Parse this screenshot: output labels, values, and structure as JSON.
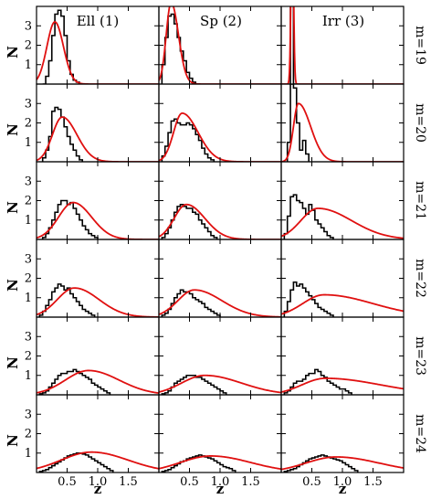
{
  "chart_data": {
    "type": "histogram-grid",
    "columns": [
      "Ell (1)",
      "Sp (2)",
      "Irr (3)"
    ],
    "rows": [
      "m=19",
      "m=20",
      "m=21",
      "m=22",
      "m=23",
      "m=24"
    ],
    "ylabel": "N",
    "xlabel": "z",
    "x_ticks": [
      "0.5",
      "1.0",
      "1.5"
    ],
    "y_ticks": [
      "1",
      "2",
      "3"
    ],
    "xlim": [
      0,
      2.0
    ],
    "ylim": [
      0,
      4
    ],
    "colors": {
      "histogram": "#000000",
      "model": "#e01010"
    },
    "panels": [
      {
        "row": 0,
        "col": 0,
        "hist": {
          "start": 0.1,
          "width": 0.05,
          "values": [
            0,
            0.4,
            1.2,
            2.5,
            3.6,
            3.8,
            3.5,
            2.5,
            1.2,
            0.5,
            0.2,
            0.1
          ]
        },
        "model": {
          "peak": 0.3,
          "amp": 3.2,
          "sigma_left": 0.13,
          "sigma_right": 0.14
        }
      },
      {
        "row": 0,
        "col": 1,
        "hist": {
          "start": 0.05,
          "width": 0.05,
          "values": [
            1.0,
            2.4,
            3.5,
            3.6,
            3.1,
            2.4,
            1.7,
            1.2,
            0.6,
            0.3,
            0.1
          ]
        },
        "model": {
          "peak": 0.2,
          "amp": 4.2,
          "sigma_left": 0.08,
          "sigma_right": 0.12
        }
      },
      {
        "row": 0,
        "col": 2,
        "hist": {
          "start": 0.15,
          "width": 0.05,
          "values": [
            4.2,
            0.0
          ]
        },
        "model": {
          "peak": 0.18,
          "amp": 9.0,
          "sigma_left": 0.02,
          "sigma_right": 0.02
        }
      },
      {
        "row": 1,
        "col": 0,
        "hist": {
          "start": 0.1,
          "width": 0.05,
          "values": [
            0.2,
            0.6,
            1.3,
            2.6,
            2.8,
            2.7,
            2.3,
            1.8,
            1.3,
            0.9,
            0.6,
            0.3,
            0.1
          ]
        },
        "model": {
          "peak": 0.42,
          "amp": 2.3,
          "sigma_left": 0.16,
          "sigma_right": 0.24
        }
      },
      {
        "row": 1,
        "col": 1,
        "hist": {
          "start": 0.05,
          "width": 0.05,
          "values": [
            0.3,
            0.8,
            1.5,
            2.1,
            2.2,
            2.0,
            1.9,
            1.9,
            2.0,
            1.9,
            1.7,
            1.4,
            1.1,
            0.7,
            0.4,
            0.2,
            0.1
          ]
        },
        "model": {
          "peak": 0.38,
          "amp": 2.5,
          "sigma_left": 0.14,
          "sigma_right": 0.26
        }
      },
      {
        "row": 1,
        "col": 2,
        "hist": {
          "start": 0.1,
          "width": 0.05,
          "values": [
            1.0,
            4.0,
            3.8,
            2.0,
            0.6,
            1.1,
            0.4
          ]
        },
        "model": {
          "peak": 0.28,
          "amp": 3.0,
          "sigma_left": 0.08,
          "sigma_right": 0.2
        }
      },
      {
        "row": 2,
        "col": 0,
        "hist": {
          "start": 0.1,
          "width": 0.05,
          "values": [
            0.1,
            0.3,
            0.6,
            1.0,
            1.4,
            1.8,
            2.0,
            2.0,
            1.8,
            1.9,
            1.6,
            1.3,
            1.0,
            0.7,
            0.5,
            0.3,
            0.2,
            0.1
          ]
        },
        "model": {
          "peak": 0.6,
          "amp": 1.9,
          "sigma_left": 0.24,
          "sigma_right": 0.3
        }
      },
      {
        "row": 2,
        "col": 1,
        "hist": {
          "start": 0.05,
          "width": 0.05,
          "values": [
            0.1,
            0.3,
            0.6,
            1.0,
            1.4,
            1.7,
            1.8,
            1.7,
            1.6,
            1.6,
            1.4,
            1.3,
            1.0,
            0.8,
            0.6,
            0.4,
            0.2,
            0.1
          ]
        },
        "model": {
          "peak": 0.45,
          "amp": 1.8,
          "sigma_left": 0.2,
          "sigma_right": 0.3
        }
      },
      {
        "row": 2,
        "col": 2,
        "hist": {
          "start": 0.05,
          "width": 0.05,
          "values": [
            0.3,
            1.2,
            2.2,
            2.3,
            2.0,
            1.9,
            1.6,
            1.3,
            1.8,
            1.5,
            1.0,
            0.8,
            0.6,
            0.4,
            0.2,
            0.1
          ]
        },
        "model": {
          "peak": 0.6,
          "amp": 1.6,
          "sigma_left": 0.28,
          "sigma_right": 0.55
        }
      },
      {
        "row": 3,
        "col": 0,
        "hist": {
          "start": 0.05,
          "width": 0.05,
          "values": [
            0.1,
            0.3,
            0.6,
            0.9,
            1.3,
            1.5,
            1.7,
            1.6,
            1.4,
            1.5,
            1.2,
            1.0,
            0.8,
            0.6,
            0.4,
            0.3,
            0.2,
            0.1
          ]
        },
        "model": {
          "peak": 0.62,
          "amp": 1.5,
          "sigma_left": 0.28,
          "sigma_right": 0.4
        }
      },
      {
        "row": 3,
        "col": 1,
        "hist": {
          "start": 0.05,
          "width": 0.05,
          "values": [
            0.1,
            0.2,
            0.4,
            0.7,
            1.0,
            1.2,
            1.4,
            1.3,
            1.3,
            1.2,
            1.0,
            0.9,
            0.8,
            0.7,
            0.5,
            0.4,
            0.3,
            0.2,
            0.1
          ]
        },
        "model": {
          "peak": 0.58,
          "amp": 1.4,
          "sigma_left": 0.27,
          "sigma_right": 0.45
        }
      },
      {
        "row": 3,
        "col": 2,
        "hist": {
          "start": 0.05,
          "width": 0.05,
          "values": [
            0.3,
            0.8,
            1.4,
            1.8,
            1.6,
            1.7,
            1.5,
            1.3,
            1.1,
            0.9,
            0.7,
            0.5,
            0.4,
            0.3,
            0.2,
            0.1
          ]
        },
        "model": {
          "peak": 0.7,
          "amp": 1.15,
          "sigma_left": 0.35,
          "sigma_right": 0.8
        }
      },
      {
        "row": 4,
        "col": 0,
        "hist": {
          "start": 0.05,
          "width": 0.05,
          "values": [
            0.05,
            0.1,
            0.2,
            0.4,
            0.6,
            0.8,
            1.0,
            1.1,
            1.1,
            1.2,
            1.2,
            1.3,
            1.2,
            1.1,
            1.0,
            0.9,
            0.8,
            0.6,
            0.5,
            0.4,
            0.3,
            0.2,
            0.1
          ]
        },
        "model": {
          "peak": 0.85,
          "amp": 1.25,
          "sigma_left": 0.38,
          "sigma_right": 0.5
        }
      },
      {
        "row": 4,
        "col": 1,
        "hist": {
          "start": 0.05,
          "width": 0.05,
          "values": [
            0.05,
            0.1,
            0.2,
            0.4,
            0.6,
            0.7,
            0.8,
            0.9,
            1.0,
            1.0,
            1.0,
            0.9,
            0.9,
            0.8,
            0.7,
            0.6,
            0.5,
            0.4,
            0.3,
            0.2,
            0.1
          ]
        },
        "model": {
          "peak": 0.75,
          "amp": 1.0,
          "sigma_left": 0.38,
          "sigma_right": 0.6
        }
      },
      {
        "row": 4,
        "col": 2,
        "hist": {
          "start": 0.05,
          "width": 0.05,
          "values": [
            0.1,
            0.2,
            0.4,
            0.6,
            0.7,
            0.7,
            0.8,
            1.0,
            1.1,
            1.1,
            1.3,
            1.2,
            1.0,
            0.9,
            0.7,
            0.6,
            0.5,
            0.4,
            0.3,
            0.3,
            0.2,
            0.1
          ]
        },
        "model": {
          "peak": 0.72,
          "amp": 0.85,
          "sigma_left": 0.38,
          "sigma_right": 0.9
        }
      },
      {
        "row": 5,
        "col": 0,
        "hist": {
          "start": 0.05,
          "width": 0.05,
          "values": [
            0.05,
            0.1,
            0.15,
            0.25,
            0.35,
            0.45,
            0.55,
            0.65,
            0.75,
            0.85,
            0.9,
            0.95,
            1.0,
            1.0,
            0.95,
            0.9,
            0.8,
            0.7,
            0.6,
            0.5,
            0.4,
            0.3,
            0.2,
            0.1
          ]
        },
        "model": {
          "peak": 0.9,
          "amp": 1.05,
          "sigma_left": 0.5,
          "sigma_right": 0.6
        }
      },
      {
        "row": 5,
        "col": 1,
        "hist": {
          "start": 0.05,
          "width": 0.05,
          "values": [
            0.05,
            0.1,
            0.15,
            0.25,
            0.35,
            0.45,
            0.55,
            0.6,
            0.7,
            0.75,
            0.8,
            0.85,
            0.9,
            0.85,
            0.8,
            0.75,
            0.7,
            0.6,
            0.5,
            0.4,
            0.3,
            0.25,
            0.2,
            0.1
          ]
        },
        "model": {
          "peak": 0.85,
          "amp": 0.85,
          "sigma_left": 0.5,
          "sigma_right": 0.65
        }
      },
      {
        "row": 5,
        "col": 2,
        "hist": {
          "start": 0.05,
          "width": 0.05,
          "values": [
            0.05,
            0.1,
            0.15,
            0.2,
            0.3,
            0.4,
            0.5,
            0.6,
            0.7,
            0.75,
            0.8,
            0.85,
            0.9,
            0.85,
            0.8,
            0.75,
            0.7,
            0.65,
            0.6,
            0.5,
            0.4,
            0.3,
            0.2,
            0.1
          ]
        },
        "model": {
          "peak": 0.9,
          "amp": 0.8,
          "sigma_left": 0.5,
          "sigma_right": 0.7
        }
      }
    ]
  }
}
